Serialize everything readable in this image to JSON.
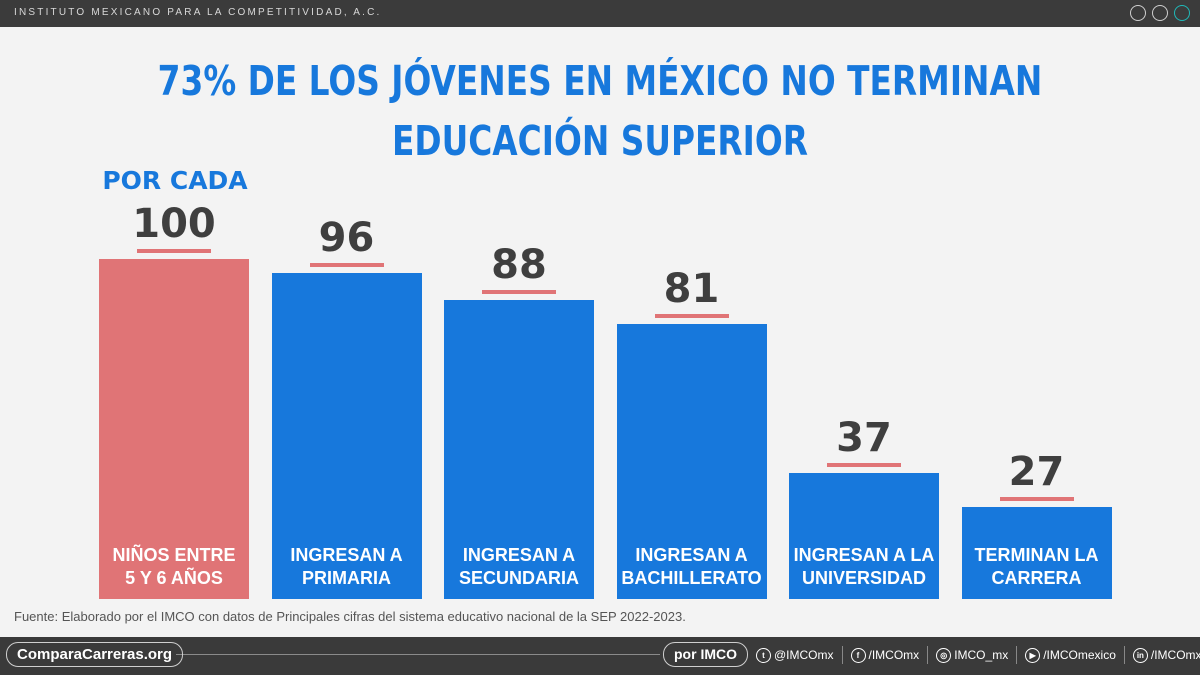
{
  "header": {
    "org": "INSTITUTO MEXICANO PARA LA COMPETITIVIDAD, A.C."
  },
  "chart_data": {
    "type": "bar",
    "title": "73% DE LOS JÓVENES EN MÉXICO NO TERMINAN EDUCACIÓN SUPERIOR",
    "title_lines": [
      "73% DE LOS JÓVENES EN MÉXICO NO TERMINAN",
      "EDUCACIÓN SUPERIOR"
    ],
    "annotation": "POR CADA",
    "categories": [
      "NIÑOS ENTRE 5 Y 6 AÑOS",
      "INGRESAN A PRIMARIA",
      "INGRESAN A SECUNDARIA",
      "INGRESAN A BACHILLERATO",
      "INGRESAN A LA UNIVERSIDAD",
      "TERMINAN LA CARRERA"
    ],
    "category_lines": [
      [
        "NIÑOS ENTRE",
        "5 Y 6 AÑOS"
      ],
      [
        "INGRESAN A",
        "PRIMARIA"
      ],
      [
        "INGRESAN A",
        "SECUNDARIA"
      ],
      [
        "INGRESAN A",
        "BACHILLERATO"
      ],
      [
        "INGRESAN A LA",
        "UNIVERSIDAD"
      ],
      [
        "TERMINAN LA",
        "CARRERA"
      ]
    ],
    "values": [
      100,
      96,
      88,
      81,
      37,
      27
    ],
    "colors": [
      "#e07476",
      "#1778dc",
      "#1778dc",
      "#1778dc",
      "#1778dc",
      "#1778dc"
    ],
    "ylim": [
      0,
      100
    ],
    "grid": false,
    "legend": "none",
    "source": "Fuente: Elaborado por el IMCO con datos de Principales cifras del sistema educativo nacional de la SEP 2022-2023."
  },
  "footer": {
    "site": "ComparaCarreras.org",
    "by": "por IMCO",
    "socials": [
      {
        "icon": "twitter-icon",
        "glyph": "t",
        "handle": "@IMCOmx"
      },
      {
        "icon": "facebook-icon",
        "glyph": "f",
        "handle": "/IMCOmx"
      },
      {
        "icon": "instagram-icon",
        "glyph": "◎",
        "handle": "IMCO_mx"
      },
      {
        "icon": "youtube-icon",
        "glyph": "▶",
        "handle": "/IMCOmexico"
      },
      {
        "icon": "linkedin-icon",
        "glyph": "in",
        "handle": "/IMCOmx"
      }
    ]
  }
}
